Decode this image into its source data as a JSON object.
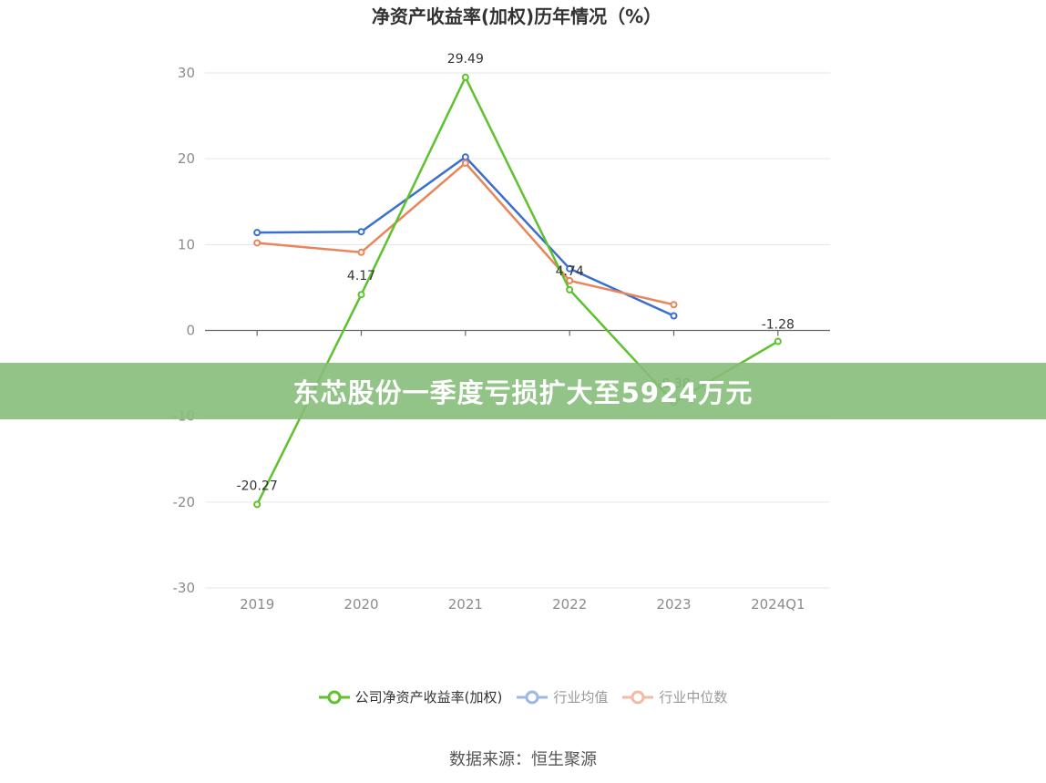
{
  "chart_data": {
    "type": "line",
    "title": "净资产收益率(加权)历年情况（%）",
    "categories": [
      "2019",
      "2020",
      "2021",
      "2022",
      "2023",
      "2024Q1"
    ],
    "ylim": [
      -30,
      30
    ],
    "yticks": [
      30,
      20,
      10,
      0,
      -10,
      -20,
      -30
    ],
    "grid": true,
    "legend_position": "bottom",
    "series": [
      {
        "name": "公司净资产收益率(加权)",
        "color": "#5ec12e",
        "values": [
          -20.27,
          4.17,
          29.49,
          4.74,
          -8.38,
          -1.28
        ],
        "labels": [
          "-20.27",
          "4.17",
          "29.49",
          "4.74",
          "-8.38",
          "-1.28"
        ]
      },
      {
        "name": "行业均值",
        "color": "#3a6fcf",
        "values": [
          11.4,
          11.5,
          20.2,
          7.2,
          1.7,
          null
        ]
      },
      {
        "name": "行业中位数",
        "color": "#e8855a",
        "values": [
          10.2,
          9.1,
          19.5,
          5.8,
          3.0,
          null
        ]
      }
    ]
  },
  "banner": {
    "text": "东芯股份一季度亏损扩大至5924万元"
  },
  "source": {
    "text": "数据来源：恒生聚源"
  }
}
